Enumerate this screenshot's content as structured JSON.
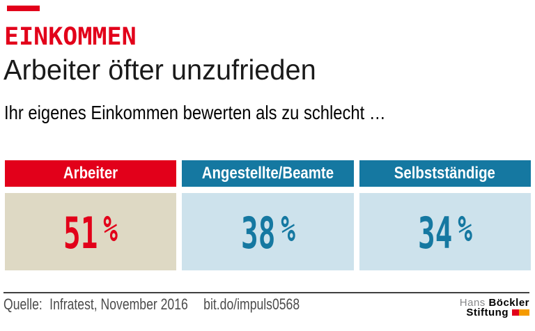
{
  "page": {
    "kicker": "EINKOMMEN",
    "title": "Arbeiter öfter unzufrieden",
    "subtitle": "Ihr eigenes Einkommen bewerten als zu schlecht …"
  },
  "columns": [
    {
      "label": "Arbeiter",
      "value": "51",
      "unit": "%",
      "header_color": "#e2001a",
      "body_color": "#ded9c4",
      "value_color": "#e2001a"
    },
    {
      "label": "Angestellte/Beamte",
      "value": "38",
      "unit": "%",
      "header_color": "#1578a1",
      "body_color": "#cde2ec",
      "value_color": "#1578a1"
    },
    {
      "label": "Selbstständige",
      "value": "34",
      "unit": "%",
      "header_color": "#1578a1",
      "body_color": "#cde2ec",
      "value_color": "#1578a1"
    }
  ],
  "chart_data": {
    "type": "bar",
    "kicker": "EINKOMMEN",
    "title": "Arbeiter öfter unzufrieden",
    "subtitle": "Ihr eigenes Einkommen bewerten als zu schlecht …",
    "categories": [
      "Arbeiter",
      "Angestellte/Beamte",
      "Selbstständige"
    ],
    "values": [
      51,
      38,
      34
    ],
    "unit": "%",
    "legend": false,
    "source": "Infratest, November 2016",
    "link": "bit.do/impuls0568"
  },
  "footer": {
    "source_label": "Quelle:",
    "source_text": "Infratest, November 2016",
    "link": "bit.do/impuls0568"
  },
  "logo": {
    "name_light": "Hans",
    "name_bold": "Böckler",
    "line2_bold": "Stiftung"
  },
  "colors": {
    "accent_red": "#e2001a",
    "accent_blue": "#1578a1",
    "beige": "#ded9c4",
    "light_blue": "#cde2ec",
    "rule_gray": "#404040",
    "text_gray": "#4b4b4b",
    "logo_gray": "#87888a",
    "logo_red": "#e2001a",
    "logo_orange": "#f59b00"
  }
}
